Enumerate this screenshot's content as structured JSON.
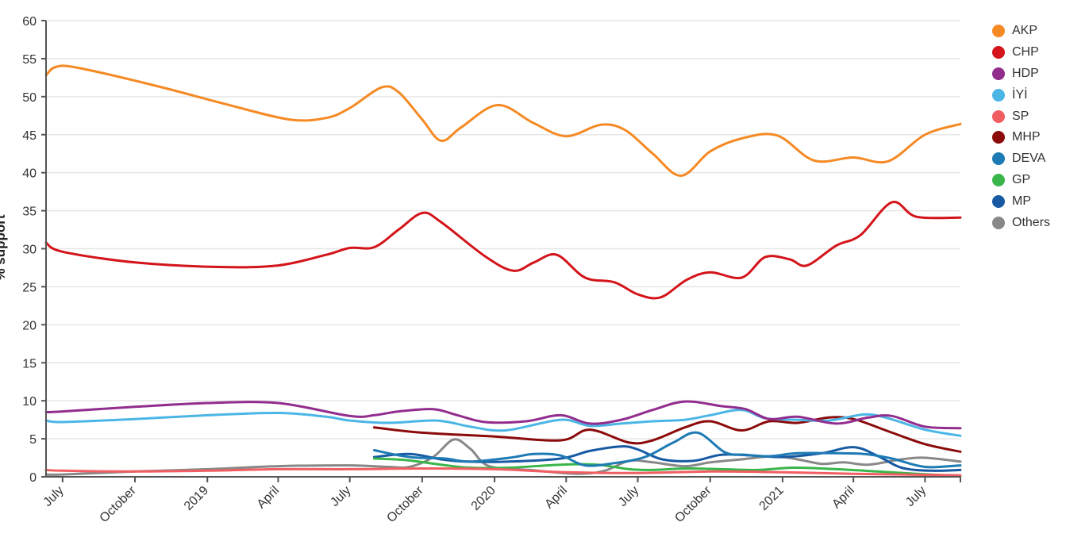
{
  "chart_data": {
    "type": "line",
    "ylabel": "% support",
    "ylim": [
      0,
      60
    ],
    "yticks": [
      "0",
      "5",
      "10",
      "15",
      "20",
      "25",
      "30",
      "35",
      "40",
      "45",
      "50",
      "55",
      "60"
    ],
    "xlim": [
      "2018-06-10",
      "2021-08-15"
    ],
    "xticks": [
      {
        "label": "July",
        "date": "2018-07-01"
      },
      {
        "label": "October",
        "date": "2018-10-01"
      },
      {
        "label": "2019",
        "date": "2019-01-01"
      },
      {
        "label": "April",
        "date": "2019-04-01"
      },
      {
        "label": "July",
        "date": "2019-07-01"
      },
      {
        "label": "October",
        "date": "2019-10-01"
      },
      {
        "label": "2020",
        "date": "2020-01-01"
      },
      {
        "label": "April",
        "date": "2020-04-01"
      },
      {
        "label": "July",
        "date": "2020-07-01"
      },
      {
        "label": "October",
        "date": "2020-10-01"
      },
      {
        "label": "2021",
        "date": "2021-01-01"
      },
      {
        "label": "April",
        "date": "2021-04-01"
      },
      {
        "label": "July",
        "date": "2021-07-01"
      }
    ],
    "grid": true,
    "legend_position": "right",
    "series": [
      {
        "name": "AKP",
        "color": "#f58a24",
        "points": [
          [
            "2018-06-10",
            52.8
          ],
          [
            "2018-06-22",
            53.9
          ],
          [
            "2018-07-20",
            53.8
          ],
          [
            "2018-10-25",
            51.5
          ],
          [
            "2019-01-25",
            49.0
          ],
          [
            "2019-04-15",
            47.0
          ],
          [
            "2019-06-01",
            47.2
          ],
          [
            "2019-07-01",
            48.5
          ],
          [
            "2019-08-10",
            51.2
          ],
          [
            "2019-09-01",
            50.6
          ],
          [
            "2019-10-01",
            47.0
          ],
          [
            "2019-10-25",
            44.2
          ],
          [
            "2019-11-20",
            46.0
          ],
          [
            "2020-01-05",
            48.9
          ],
          [
            "2020-02-20",
            46.5
          ],
          [
            "2020-04-01",
            44.8
          ],
          [
            "2020-05-15",
            46.3
          ],
          [
            "2020-06-15",
            45.6
          ],
          [
            "2020-07-20",
            42.5
          ],
          [
            "2020-08-25",
            39.6
          ],
          [
            "2020-10-01",
            42.8
          ],
          [
            "2020-11-10",
            44.5
          ],
          [
            "2020-12-25",
            44.9
          ],
          [
            "2021-02-10",
            41.6
          ],
          [
            "2021-04-01",
            42.0
          ],
          [
            "2021-05-15",
            41.5
          ],
          [
            "2021-07-01",
            45.0
          ],
          [
            "2021-08-15",
            46.4
          ]
        ]
      },
      {
        "name": "CHP",
        "color": "#d3141a",
        "points": [
          [
            "2018-06-10",
            30.8
          ],
          [
            "2018-07-01",
            29.6
          ],
          [
            "2018-10-01",
            28.2
          ],
          [
            "2019-01-15",
            27.6
          ],
          [
            "2019-04-01",
            27.8
          ],
          [
            "2019-06-01",
            29.2
          ],
          [
            "2019-07-01",
            30.1
          ],
          [
            "2019-08-01",
            30.2
          ],
          [
            "2019-09-01",
            32.5
          ],
          [
            "2019-10-01",
            34.7
          ],
          [
            "2019-10-25",
            33.5
          ],
          [
            "2019-12-20",
            29.0
          ],
          [
            "2020-01-25",
            27.1
          ],
          [
            "2020-02-20",
            28.2
          ],
          [
            "2020-03-20",
            29.2
          ],
          [
            "2020-04-25",
            26.2
          ],
          [
            "2020-06-01",
            25.6
          ],
          [
            "2020-07-01",
            24.0
          ],
          [
            "2020-07-30",
            23.6
          ],
          [
            "2020-09-01",
            25.9
          ],
          [
            "2020-10-01",
            26.9
          ],
          [
            "2020-11-10",
            26.2
          ],
          [
            "2020-12-10",
            28.9
          ],
          [
            "2021-01-10",
            28.6
          ],
          [
            "2021-02-01",
            27.8
          ],
          [
            "2021-03-10",
            30.4
          ],
          [
            "2021-04-10",
            31.8
          ],
          [
            "2021-05-20",
            36.1
          ],
          [
            "2021-06-20",
            34.2
          ],
          [
            "2021-08-15",
            34.1
          ]
        ]
      },
      {
        "name": "HDP",
        "color": "#922d8e",
        "points": [
          [
            "2018-06-10",
            8.5
          ],
          [
            "2018-07-01",
            8.6
          ],
          [
            "2018-10-01",
            9.2
          ],
          [
            "2019-01-01",
            9.7
          ],
          [
            "2019-04-01",
            9.7
          ],
          [
            "2019-07-01",
            8.0
          ],
          [
            "2019-08-01",
            8.1
          ],
          [
            "2019-09-01",
            8.6
          ],
          [
            "2019-10-15",
            8.9
          ],
          [
            "2019-11-15",
            8.1
          ],
          [
            "2019-12-20",
            7.2
          ],
          [
            "2020-02-10",
            7.3
          ],
          [
            "2020-03-25",
            8.1
          ],
          [
            "2020-05-01",
            7.0
          ],
          [
            "2020-06-10",
            7.5
          ],
          [
            "2020-07-20",
            8.8
          ],
          [
            "2020-08-30",
            9.9
          ],
          [
            "2020-10-15",
            9.3
          ],
          [
            "2020-11-15",
            8.9
          ],
          [
            "2020-12-15",
            7.6
          ],
          [
            "2021-01-20",
            7.9
          ],
          [
            "2021-03-10",
            7.0
          ],
          [
            "2021-04-20",
            7.8
          ],
          [
            "2021-05-20",
            8.0
          ],
          [
            "2021-07-01",
            6.6
          ],
          [
            "2021-08-15",
            6.4
          ]
        ]
      },
      {
        "name": "İYİ",
        "color": "#4bb6e6",
        "points": [
          [
            "2018-06-10",
            7.4
          ],
          [
            "2018-07-01",
            7.2
          ],
          [
            "2018-10-01",
            7.6
          ],
          [
            "2019-01-01",
            8.1
          ],
          [
            "2019-04-01",
            8.4
          ],
          [
            "2019-06-01",
            7.9
          ],
          [
            "2019-07-01",
            7.4
          ],
          [
            "2019-08-20",
            7.1
          ],
          [
            "2019-10-20",
            7.4
          ],
          [
            "2019-12-01",
            6.6
          ],
          [
            "2020-01-15",
            6.1
          ],
          [
            "2020-03-25",
            7.5
          ],
          [
            "2020-05-01",
            6.7
          ],
          [
            "2020-06-10",
            7.0
          ],
          [
            "2020-07-20",
            7.3
          ],
          [
            "2020-08-30",
            7.5
          ],
          [
            "2020-10-01",
            8.1
          ],
          [
            "2020-11-10",
            8.8
          ],
          [
            "2020-12-10",
            7.7
          ],
          [
            "2021-01-20",
            7.5
          ],
          [
            "2021-03-01",
            7.4
          ],
          [
            "2021-04-15",
            8.2
          ],
          [
            "2021-05-15",
            7.7
          ],
          [
            "2021-07-01",
            6.2
          ],
          [
            "2021-08-15",
            5.4
          ]
        ]
      },
      {
        "name": "SP",
        "color": "#f05e62",
        "points": [
          [
            "2018-06-10",
            0.9
          ],
          [
            "2018-07-01",
            0.8
          ],
          [
            "2018-10-01",
            0.7
          ],
          [
            "2019-01-01",
            0.8
          ],
          [
            "2019-04-01",
            1.0
          ],
          [
            "2019-07-01",
            1.0
          ],
          [
            "2019-10-01",
            1.1
          ],
          [
            "2020-01-01",
            1.0
          ],
          [
            "2020-04-01",
            0.6
          ],
          [
            "2020-07-01",
            0.5
          ],
          [
            "2020-10-01",
            0.7
          ],
          [
            "2021-01-01",
            0.6
          ],
          [
            "2021-04-01",
            0.4
          ],
          [
            "2021-08-15",
            0.2
          ]
        ]
      },
      {
        "name": "MHP",
        "color": "#8b0a0a",
        "points": [
          [
            "2019-08-01",
            6.5
          ],
          [
            "2019-10-01",
            5.8
          ],
          [
            "2020-01-01",
            5.3
          ],
          [
            "2020-03-25",
            4.8
          ],
          [
            "2020-05-01",
            6.2
          ],
          [
            "2020-06-20",
            4.5
          ],
          [
            "2020-07-20",
            4.8
          ],
          [
            "2020-08-30",
            6.5
          ],
          [
            "2020-10-01",
            7.3
          ],
          [
            "2020-11-10",
            6.1
          ],
          [
            "2020-12-15",
            7.3
          ],
          [
            "2021-01-20",
            7.1
          ],
          [
            "2021-03-01",
            7.8
          ],
          [
            "2021-04-01",
            7.6
          ],
          [
            "2021-05-15",
            6.0
          ],
          [
            "2021-07-01",
            4.3
          ],
          [
            "2021-08-15",
            3.3
          ]
        ]
      },
      {
        "name": "DEVA",
        "color": "#1e7ab4",
        "points": [
          [
            "2019-08-01",
            3.5
          ],
          [
            "2019-09-15",
            2.6
          ],
          [
            "2019-10-30",
            2.4
          ],
          [
            "2019-12-01",
            2.0
          ],
          [
            "2020-01-20",
            2.5
          ],
          [
            "2020-02-20",
            3.0
          ],
          [
            "2020-03-25",
            2.8
          ],
          [
            "2020-04-25",
            1.5
          ],
          [
            "2020-06-01",
            1.8
          ],
          [
            "2020-07-10",
            2.6
          ],
          [
            "2020-08-15",
            4.5
          ],
          [
            "2020-09-15",
            5.8
          ],
          [
            "2020-10-20",
            3.2
          ],
          [
            "2020-11-15",
            2.9
          ],
          [
            "2020-12-15",
            2.7
          ],
          [
            "2021-01-20",
            3.1
          ],
          [
            "2021-03-10",
            3.1
          ],
          [
            "2021-04-15",
            3.0
          ],
          [
            "2021-05-20",
            2.4
          ],
          [
            "2021-07-01",
            1.3
          ],
          [
            "2021-08-15",
            1.5
          ]
        ]
      },
      {
        "name": "GP",
        "color": "#3ab54a",
        "points": [
          [
            "2019-08-01",
            2.4
          ],
          [
            "2019-09-10",
            2.2
          ],
          [
            "2019-10-25",
            1.6
          ],
          [
            "2019-12-01",
            1.2
          ],
          [
            "2020-01-20",
            1.2
          ],
          [
            "2020-03-25",
            1.6
          ],
          [
            "2020-05-10",
            1.6
          ],
          [
            "2020-06-20",
            1.0
          ],
          [
            "2020-07-20",
            0.9
          ],
          [
            "2020-09-01",
            1.1
          ],
          [
            "2020-10-15",
            1.0
          ],
          [
            "2020-11-30",
            0.9
          ],
          [
            "2021-01-15",
            1.2
          ],
          [
            "2021-03-10",
            1.0
          ],
          [
            "2021-05-01",
            0.7
          ],
          [
            "2021-06-20",
            0.4
          ],
          [
            "2021-08-15",
            0.1
          ]
        ]
      },
      {
        "name": "MP",
        "color": "#175aa3",
        "points": [
          [
            "2019-08-01",
            2.6
          ],
          [
            "2019-09-15",
            3.0
          ],
          [
            "2019-10-25",
            2.3
          ],
          [
            "2019-11-25",
            2.0
          ],
          [
            "2020-01-20",
            2.0
          ],
          [
            "2020-03-25",
            2.4
          ],
          [
            "2020-05-01",
            3.4
          ],
          [
            "2020-06-10",
            4.0
          ],
          [
            "2020-07-01",
            3.6
          ],
          [
            "2020-08-01",
            2.3
          ],
          [
            "2020-09-10",
            2.1
          ],
          [
            "2020-10-15",
            2.9
          ],
          [
            "2020-11-25",
            2.8
          ],
          [
            "2021-01-01",
            2.6
          ],
          [
            "2021-02-20",
            3.1
          ],
          [
            "2021-04-01",
            3.9
          ],
          [
            "2021-05-01",
            2.8
          ],
          [
            "2021-06-01",
            1.2
          ],
          [
            "2021-07-10",
            0.8
          ],
          [
            "2021-08-15",
            0.9
          ]
        ]
      },
      {
        "name": "Others",
        "color": "#888888",
        "points": [
          [
            "2018-06-10",
            0.3
          ],
          [
            "2018-07-01",
            0.3
          ],
          [
            "2018-10-01",
            0.7
          ],
          [
            "2019-01-01",
            1.0
          ],
          [
            "2019-04-01",
            1.4
          ],
          [
            "2019-07-01",
            1.5
          ],
          [
            "2019-08-20",
            1.3
          ],
          [
            "2019-09-15",
            1.3
          ],
          [
            "2019-10-15",
            2.6
          ],
          [
            "2019-11-10",
            4.9
          ],
          [
            "2019-12-01",
            3.7
          ],
          [
            "2019-12-25",
            1.4
          ],
          [
            "2020-02-15",
            0.9
          ],
          [
            "2020-04-15",
            0.4
          ],
          [
            "2020-05-20",
            0.8
          ],
          [
            "2020-06-20",
            2.1
          ],
          [
            "2020-07-20",
            1.9
          ],
          [
            "2020-08-30",
            1.4
          ],
          [
            "2020-10-01",
            1.9
          ],
          [
            "2020-11-10",
            2.3
          ],
          [
            "2020-12-20",
            2.7
          ],
          [
            "2021-01-20",
            2.3
          ],
          [
            "2021-02-20",
            1.7
          ],
          [
            "2021-03-20",
            1.9
          ],
          [
            "2021-04-20",
            1.6
          ],
          [
            "2021-06-01",
            2.3
          ],
          [
            "2021-07-01",
            2.5
          ],
          [
            "2021-08-15",
            2.0
          ]
        ]
      }
    ]
  }
}
